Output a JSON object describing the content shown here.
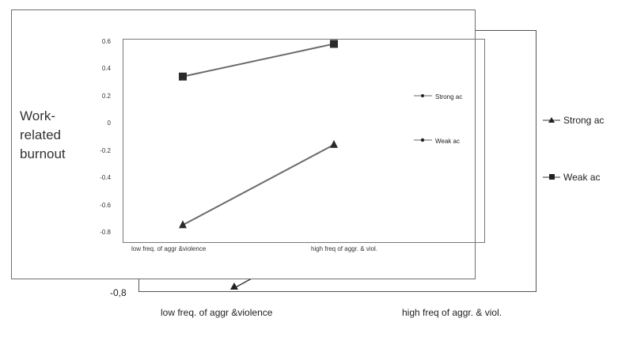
{
  "chart_data": [
    {
      "type": "line",
      "categories": [
        "low freq. of aggr &violence",
        "high freq of aggr. & viol."
      ],
      "series": [
        {
          "name": "Strong ac",
          "values": [
            -0.75,
            -0.16
          ],
          "marker": "triangle",
          "color": "#333333"
        },
        {
          "name": "Weak ac",
          "values": [
            0.34,
            0.58
          ],
          "marker": "square",
          "color": "#333333"
        }
      ],
      "ylabel": "Work-related burnout",
      "ylim": [
        -0.8,
        0.6
      ],
      "yticks": [
        "0.6",
        "0.4",
        "0.2",
        "0",
        "-0.2",
        "-0.4",
        "-0.6",
        "-0.8"
      ],
      "ytick_values": [
        0.6,
        0.4,
        0.2,
        0,
        -0.2,
        -0.4,
        -0.6,
        -0.8
      ],
      "legend_position": "right",
      "grid": false
    },
    {
      "type": "line",
      "categories": [
        "low freq. of aggr &violence",
        "high freq of aggr. & viol."
      ],
      "series": [
        {
          "name": "Strong ac",
          "marker": "triangle"
        },
        {
          "name": "Weak ac",
          "marker": "square"
        }
      ],
      "ytick_visible": "-0,8",
      "legend_position": "right"
    }
  ],
  "ylabel_lines": [
    "Work-",
    "related",
    "burnout"
  ]
}
